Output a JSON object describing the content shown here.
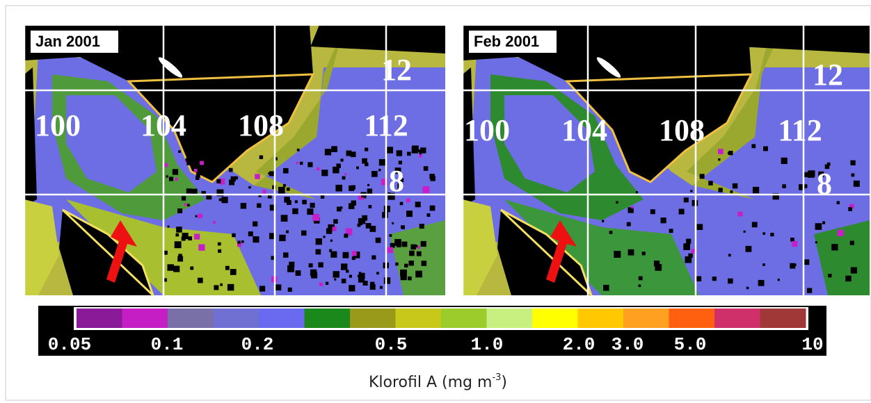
{
  "maps": [
    {
      "label": "Jan 2001",
      "grid_labels": [
        "100",
        "104",
        "108",
        "112",
        "12",
        "8"
      ]
    },
    {
      "label": "Feb 2001",
      "grid_labels": [
        "100",
        "104",
        "108",
        "112",
        "12",
        "8"
      ]
    }
  ],
  "colorbar": {
    "ticks": [
      "0.05",
      "0.1",
      "0.2",
      "0.5",
      "1.0",
      "2.0",
      "3.0",
      "5.0",
      "10"
    ]
  },
  "caption": {
    "text": "Klorofil A (mg m",
    "superscript": "-3",
    "tail": ")"
  }
}
